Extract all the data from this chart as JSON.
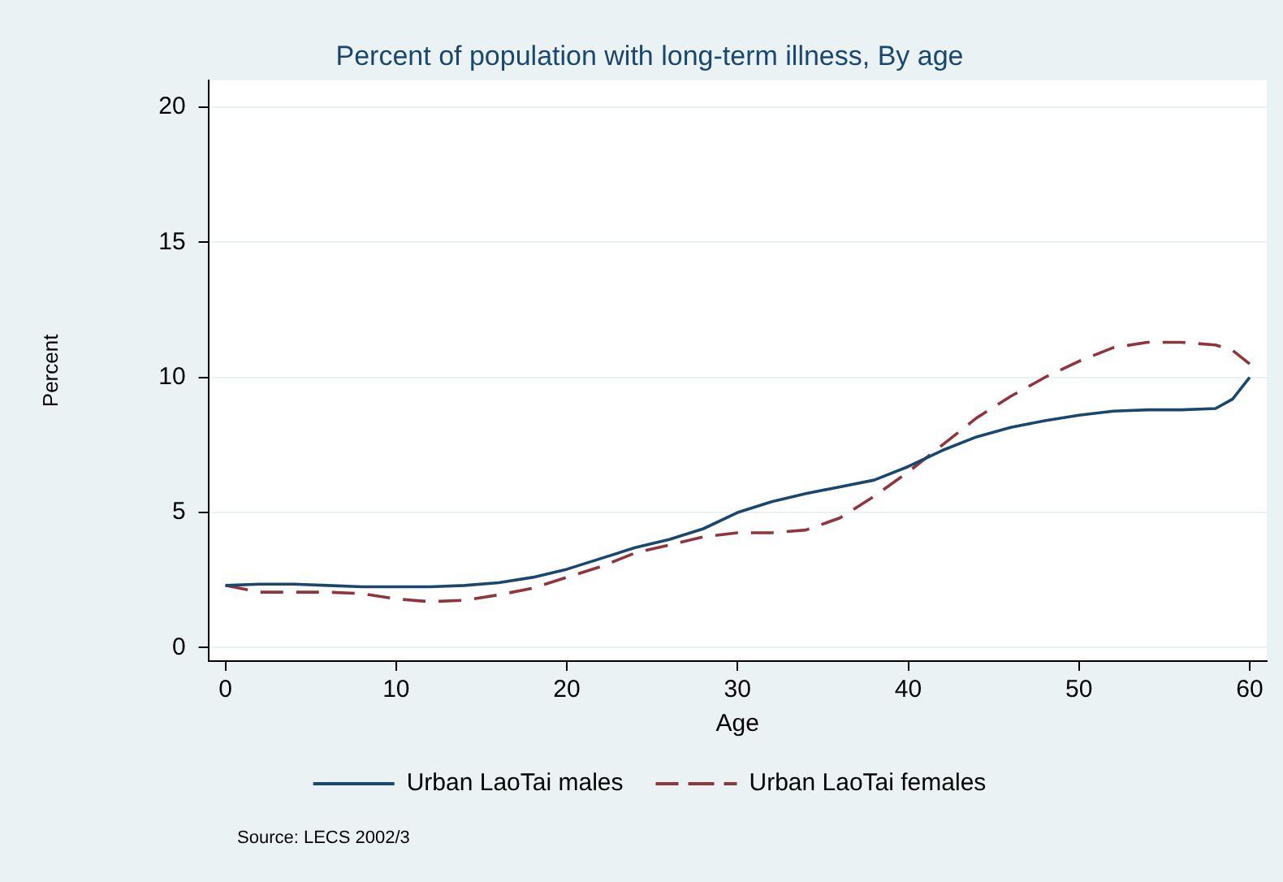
{
  "chart_data": {
    "type": "line",
    "title": "Percent of population with long-term illness, By age",
    "xlabel": "Age",
    "ylabel": "Percent",
    "x": [
      0,
      2,
      4,
      6,
      8,
      10,
      12,
      14,
      16,
      18,
      20,
      22,
      24,
      26,
      28,
      30,
      32,
      34,
      36,
      38,
      40,
      42,
      44,
      46,
      48,
      50,
      52,
      54,
      56,
      58,
      59,
      60
    ],
    "series": [
      {
        "name": "Urban LaoTai males",
        "color": "#1a476f",
        "line_style": "solid",
        "values": [
          2.3,
          2.35,
          2.35,
          2.3,
          2.25,
          2.25,
          2.25,
          2.3,
          2.4,
          2.6,
          2.9,
          3.3,
          3.7,
          4.0,
          4.4,
          5.0,
          5.4,
          5.7,
          5.95,
          6.2,
          6.7,
          7.3,
          7.8,
          8.15,
          8.4,
          8.6,
          8.75,
          8.8,
          8.8,
          8.85,
          9.2,
          10.0
        ]
      },
      {
        "name": "Urban LaoTai females",
        "color": "#90353b",
        "line_style": "dashed",
        "values": [
          2.3,
          2.05,
          2.05,
          2.05,
          2.0,
          1.8,
          1.7,
          1.75,
          1.95,
          2.2,
          2.6,
          3.0,
          3.5,
          3.8,
          4.1,
          4.25,
          4.25,
          4.35,
          4.8,
          5.6,
          6.5,
          7.5,
          8.5,
          9.3,
          10.0,
          10.6,
          11.1,
          11.3,
          11.3,
          11.2,
          11.0,
          10.5
        ]
      }
    ],
    "xlim": [
      -1,
      61
    ],
    "xticks": [
      0,
      10,
      20,
      30,
      40,
      50,
      60
    ],
    "ylim": [
      -0.5,
      21
    ],
    "yticks": [
      0,
      5,
      10,
      15,
      20
    ],
    "grid": "y",
    "legend": "bottom",
    "marker": "none",
    "annotations": [
      "Source: LECS 2002/3"
    ]
  }
}
